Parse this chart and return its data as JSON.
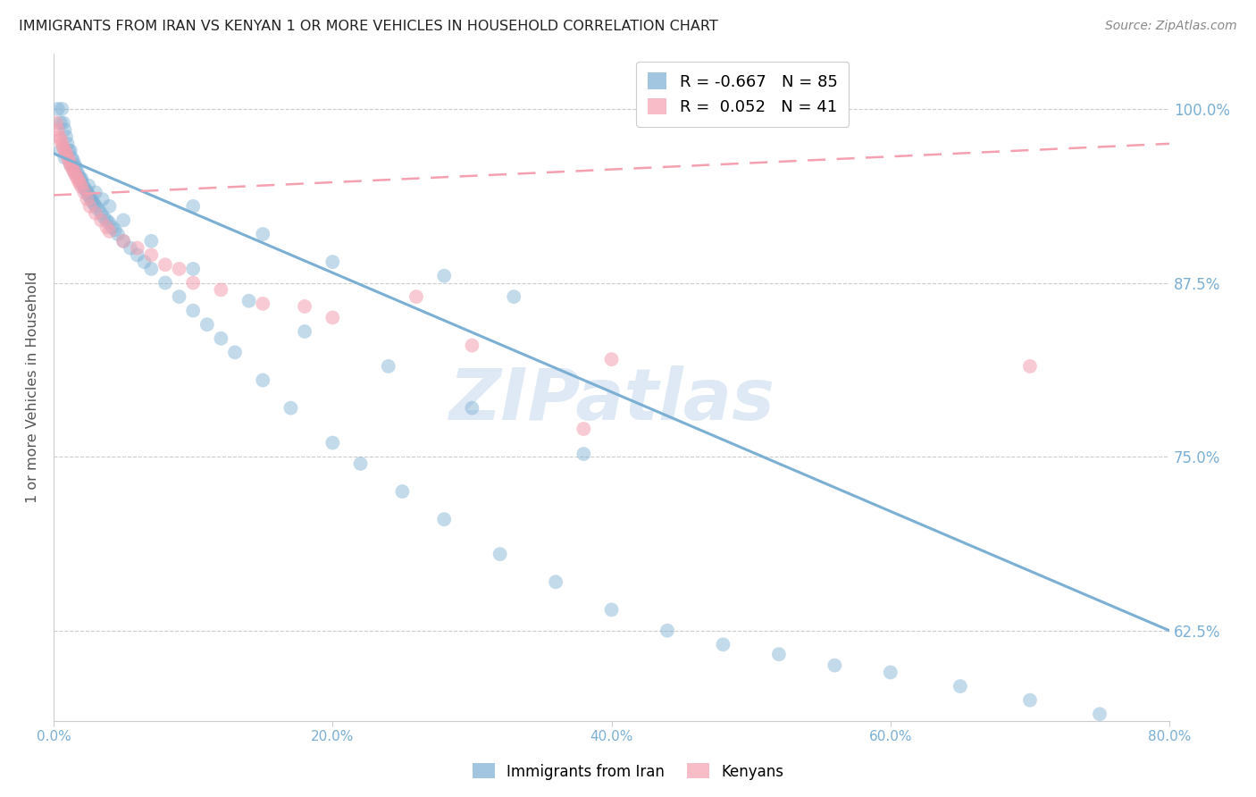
{
  "title": "IMMIGRANTS FROM IRAN VS KENYAN 1 OR MORE VEHICLES IN HOUSEHOLD CORRELATION CHART",
  "source": "Source: ZipAtlas.com",
  "ylabel": "1 or more Vehicles in Household",
  "xlim": [
    0.0,
    0.8
  ],
  "ylim": [
    0.56,
    1.04
  ],
  "x_tick_vals": [
    0.0,
    0.2,
    0.4,
    0.6,
    0.8
  ],
  "x_tick_labels": [
    "0.0%",
    "20.0%",
    "40.0%",
    "60.0%",
    "80.0%"
  ],
  "y_tick_vals": [
    0.625,
    0.75,
    0.875,
    1.0
  ],
  "y_tick_labels": [
    "62.5%",
    "75.0%",
    "87.5%",
    "100.0%"
  ],
  "legend_r1": "R = -0.667",
  "legend_n1": "N = 85",
  "legend_r2": "R =  0.052",
  "legend_n2": "N = 41",
  "legend_label1": "Immigrants from Iran",
  "legend_label2": "Kenyans",
  "watermark": "ZIPatlas",
  "background_color": "#ffffff",
  "grid_color": "#cccccc",
  "iran_color": "#7bafd4",
  "kenya_color": "#f4a0b0",
  "iran_scatter_x": [
    0.003,
    0.005,
    0.006,
    0.007,
    0.008,
    0.009,
    0.01,
    0.011,
    0.012,
    0.013,
    0.014,
    0.015,
    0.016,
    0.017,
    0.018,
    0.019,
    0.02,
    0.021,
    0.022,
    0.023,
    0.024,
    0.025,
    0.026,
    0.027,
    0.028,
    0.029,
    0.03,
    0.032,
    0.034,
    0.036,
    0.038,
    0.04,
    0.042,
    0.044,
    0.046,
    0.05,
    0.055,
    0.06,
    0.065,
    0.07,
    0.08,
    0.09,
    0.1,
    0.11,
    0.12,
    0.13,
    0.15,
    0.17,
    0.2,
    0.22,
    0.25,
    0.28,
    0.32,
    0.36,
    0.4,
    0.44,
    0.48,
    0.52,
    0.56,
    0.6,
    0.65,
    0.7,
    0.75,
    0.005,
    0.008,
    0.012,
    0.015,
    0.02,
    0.025,
    0.03,
    0.035,
    0.04,
    0.05,
    0.07,
    0.1,
    0.14,
    0.18,
    0.24,
    0.3,
    0.38,
    0.28,
    0.33,
    0.1,
    0.15,
    0.2
  ],
  "iran_scatter_y": [
    1.0,
    0.99,
    1.0,
    0.99,
    0.985,
    0.98,
    0.975,
    0.97,
    0.97,
    0.965,
    0.963,
    0.96,
    0.958,
    0.955,
    0.952,
    0.95,
    0.948,
    0.945,
    0.943,
    0.942,
    0.94,
    0.938,
    0.937,
    0.935,
    0.933,
    0.932,
    0.93,
    0.928,
    0.925,
    0.922,
    0.92,
    0.918,
    0.915,
    0.913,
    0.91,
    0.905,
    0.9,
    0.895,
    0.89,
    0.885,
    0.875,
    0.865,
    0.855,
    0.845,
    0.835,
    0.825,
    0.805,
    0.785,
    0.76,
    0.745,
    0.725,
    0.705,
    0.68,
    0.66,
    0.64,
    0.625,
    0.615,
    0.608,
    0.6,
    0.595,
    0.585,
    0.575,
    0.565,
    0.97,
    0.965,
    0.96,
    0.955,
    0.95,
    0.945,
    0.94,
    0.935,
    0.93,
    0.92,
    0.905,
    0.885,
    0.862,
    0.84,
    0.815,
    0.785,
    0.752,
    0.88,
    0.865,
    0.93,
    0.91,
    0.89
  ],
  "kenya_scatter_x": [
    0.002,
    0.003,
    0.004,
    0.005,
    0.006,
    0.007,
    0.008,
    0.009,
    0.01,
    0.011,
    0.012,
    0.013,
    0.014,
    0.015,
    0.016,
    0.017,
    0.018,
    0.019,
    0.02,
    0.022,
    0.024,
    0.026,
    0.03,
    0.034,
    0.038,
    0.04,
    0.05,
    0.06,
    0.07,
    0.09,
    0.12,
    0.15,
    0.2,
    0.3,
    0.4,
    0.7,
    0.38,
    0.1,
    0.08,
    0.26,
    0.18
  ],
  "kenya_scatter_y": [
    0.99,
    0.985,
    0.98,
    0.978,
    0.975,
    0.972,
    0.97,
    0.968,
    0.965,
    0.963,
    0.96,
    0.958,
    0.956,
    0.954,
    0.952,
    0.95,
    0.948,
    0.946,
    0.944,
    0.94,
    0.935,
    0.93,
    0.925,
    0.92,
    0.915,
    0.912,
    0.905,
    0.9,
    0.895,
    0.885,
    0.87,
    0.86,
    0.85,
    0.83,
    0.82,
    0.815,
    0.77,
    0.875,
    0.888,
    0.865,
    0.858
  ],
  "iran_trend_x": [
    0.0,
    0.8
  ],
  "iran_trend_y": [
    0.968,
    0.625
  ],
  "kenya_trend_x": [
    0.0,
    0.8
  ],
  "kenya_trend_y": [
    0.938,
    0.975
  ]
}
